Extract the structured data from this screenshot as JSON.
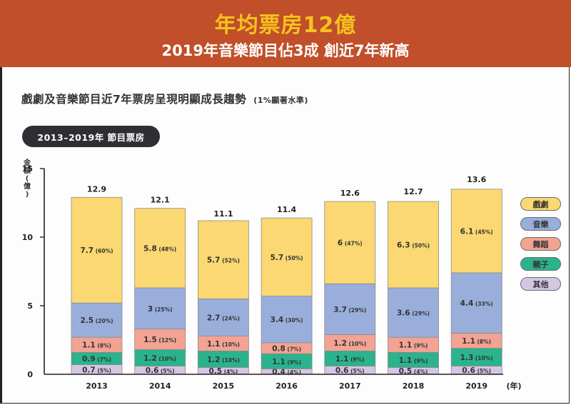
{
  "header": {
    "title": "年均票房12億",
    "subtitle": "2019年音樂節目佔3成  創近7年新高",
    "background": "#c14f2a",
    "title_color": "#f6c31c"
  },
  "chart_heading": {
    "text": "戲劇及音樂節目近7年票房呈現明顯成長趨勢",
    "note": "(1%顯著水準)"
  },
  "pill_label": "2013–2019年  節目票房",
  "chart_data": {
    "type": "bar",
    "stacked": true,
    "title": "2013–2019年 節目票房",
    "xlabel": "(年)",
    "ylabel": "金額(億)",
    "ylim": [
      0,
      15
    ],
    "yticks": [
      0,
      5,
      10,
      15
    ],
    "grid": false,
    "legend_position": "right",
    "categories": [
      "2013",
      "2014",
      "2015",
      "2016",
      "2017",
      "2018",
      "2019"
    ],
    "totals": [
      12.9,
      12.1,
      11.1,
      11.4,
      12.6,
      12.7,
      13.6
    ],
    "series": [
      {
        "name": "其他",
        "color": "#d5c6e4",
        "values": [
          0.7,
          0.6,
          0.5,
          0.4,
          0.6,
          0.5,
          0.6
        ],
        "percents": [
          "5%",
          "5%",
          "4%",
          "4%",
          "5%",
          "4%",
          "5%"
        ]
      },
      {
        "name": "親子",
        "color": "#2ab38c",
        "values": [
          0.9,
          1.2,
          1.2,
          1.1,
          1.1,
          1.1,
          1.3
        ],
        "percents": [
          "7%",
          "10%",
          "10%",
          "9%",
          "9%",
          "9%",
          "10%"
        ]
      },
      {
        "name": "舞蹈",
        "color": "#f2a393",
        "values": [
          1.1,
          1.5,
          1.1,
          0.8,
          1.2,
          1.1,
          1.1
        ],
        "percents": [
          "8%",
          "12%",
          "10%",
          "7%",
          "10%",
          "9%",
          "8%"
        ]
      },
      {
        "name": "音樂",
        "color": "#9aaedc",
        "values": [
          2.5,
          3,
          2.7,
          3.4,
          3.7,
          3.6,
          4.4
        ],
        "percents": [
          "20%",
          "25%",
          "24%",
          "30%",
          "29%",
          "29%",
          "33%"
        ]
      },
      {
        "name": "戲劇",
        "color": "#fbd872",
        "values": [
          7.7,
          5.8,
          5.7,
          5.7,
          6,
          6.3,
          6.1
        ],
        "percents": [
          "60%",
          "48%",
          "52%",
          "50%",
          "47%",
          "50%",
          "45%"
        ]
      }
    ],
    "legend_order": [
      "戲劇",
      "音樂",
      "舞蹈",
      "親子",
      "其他"
    ]
  }
}
